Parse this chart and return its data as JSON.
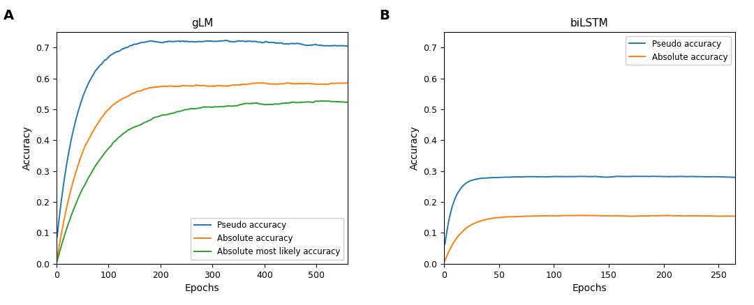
{
  "glm_title": "gLM",
  "bilstm_title": "biLSTM",
  "xlabel": "Epochs",
  "ylabel": "Accuracy",
  "panel_a_label": "A",
  "panel_b_label": "B",
  "legend_a": [
    "Pseudo accuracy",
    "Absolute accuracy",
    "Absolute most likely accuracy"
  ],
  "legend_b": [
    "Pseudo accuracy",
    "Absolute accuracy"
  ],
  "colors_blue": "#1f77b4",
  "colors_orange": "#ff7f0e",
  "colors_green": "#2ca02c",
  "glm_xlim": [
    0,
    560
  ],
  "glm_ylim": [
    0.0,
    0.75
  ],
  "bilstm_xlim": [
    0,
    265
  ],
  "bilstm_ylim": [
    0.0,
    0.75
  ],
  "glm_xticks": [
    0,
    100,
    200,
    300,
    400,
    500
  ],
  "bilstm_xticks": [
    0,
    50,
    100,
    150,
    200,
    250
  ],
  "glm_yticks": [
    0.0,
    0.1,
    0.2,
    0.3,
    0.4,
    0.5,
    0.6,
    0.7
  ],
  "bilstm_yticks": [
    0.0,
    0.1,
    0.2,
    0.3,
    0.4,
    0.5,
    0.6,
    0.7
  ],
  "background_color": "#ffffff"
}
